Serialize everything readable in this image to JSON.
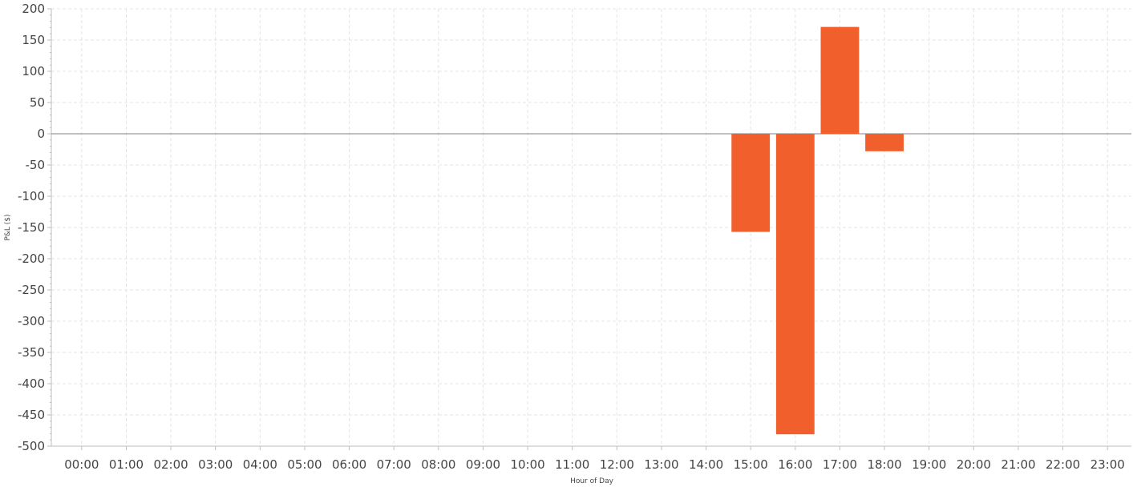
{
  "chart_data": {
    "type": "bar",
    "xlabel": "Hour of Day",
    "ylabel": "P&L ($)",
    "ylim": [
      -500,
      200
    ],
    "ytick_step": 50,
    "grid": true,
    "bar_color": "#f05f2c",
    "categories": [
      "00:00",
      "01:00",
      "02:00",
      "03:00",
      "04:00",
      "05:00",
      "06:00",
      "07:00",
      "08:00",
      "09:00",
      "10:00",
      "11:00",
      "12:00",
      "13:00",
      "14:00",
      "15:00",
      "16:00",
      "17:00",
      "18:00",
      "19:00",
      "20:00",
      "21:00",
      "22:00",
      "23:00"
    ],
    "values": [
      0,
      0,
      0,
      0,
      0,
      0,
      0,
      0,
      0,
      0,
      0,
      0,
      0,
      0,
      0,
      -157,
      -481,
      171,
      -28,
      0,
      0,
      0,
      0,
      0
    ]
  }
}
